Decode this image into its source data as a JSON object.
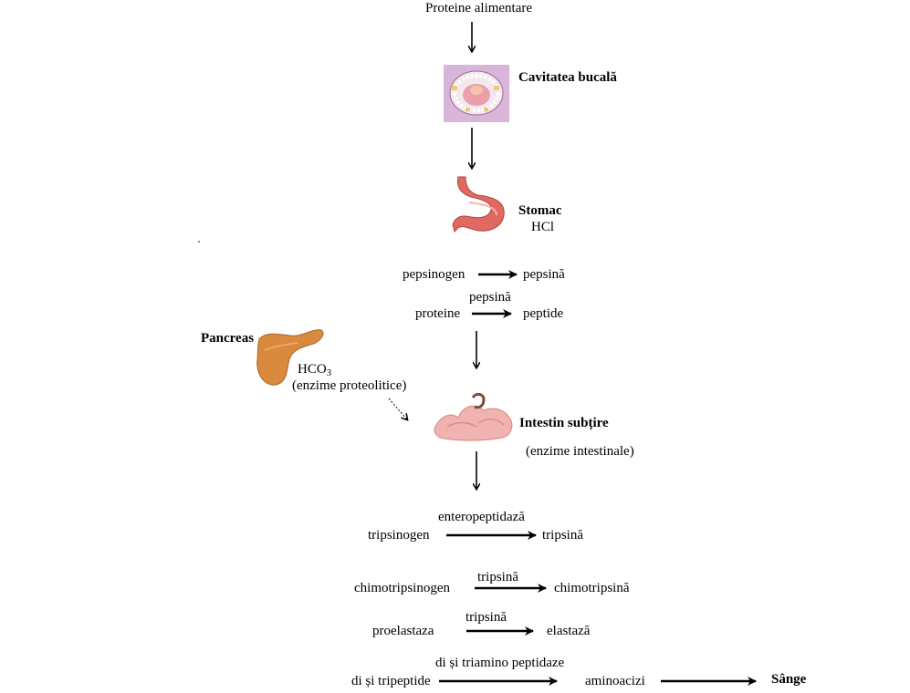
{
  "top_label": "Proteine alimentare",
  "mouth": {
    "label": "Cavitatea bucală"
  },
  "stomach": {
    "label": "Stomac",
    "acid": "HCl",
    "reactions": [
      {
        "from": "pepsinogen",
        "to": "pepsină",
        "enzyme": ""
      },
      {
        "from": "proteine",
        "to": "peptide",
        "enzyme": "pepsină"
      }
    ]
  },
  "pancreas": {
    "label": "Pancreas",
    "secretion_main": "HCO",
    "secretion_sub": "3",
    "enzymes": "(enzime proteolitice)"
  },
  "intestine": {
    "label": "Intestin subțire",
    "enzymes": "(enzime intestinale)",
    "reactions": [
      {
        "from": "tripsinogen",
        "to": "tripsină",
        "enzyme": "enteropeptidază"
      },
      {
        "from": "chimotripsinogen",
        "to": "chimotripsină",
        "enzyme": "tripsină"
      },
      {
        "from": "proelastaza",
        "to": "elastază",
        "enzyme": "tripsină"
      },
      {
        "from": "di și tripeptide",
        "to": "aminoacizi",
        "enzyme": "di și triamino peptidaze"
      }
    ]
  },
  "blood": {
    "label": "Sânge"
  },
  "colors": {
    "mouth_bg": "#d9b6d9",
    "stomach": "#e06a62",
    "pancreas": "#d98a3e",
    "intestine": "#f1b3b0"
  }
}
